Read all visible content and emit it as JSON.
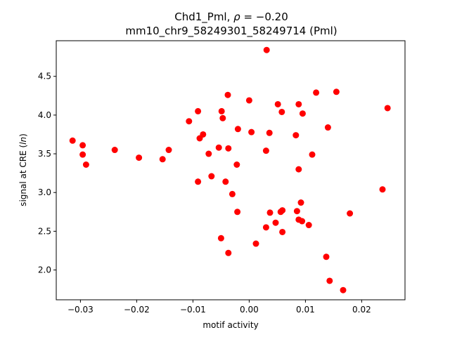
{
  "chart_data": {
    "type": "scatter",
    "title_line1": "Chd1_Pml, ρ = −0.20",
    "title_line2": "mm10_chr9_58249301_58249714 (Pml)",
    "xlabel": "motif activity",
    "ylabel": "signal at CRE (ln)",
    "xlim": [
      -0.0343,
      0.0277
    ],
    "ylim": [
      1.615,
      4.96
    ],
    "xticks": [
      {
        "value": -0.03,
        "label": "−0.03"
      },
      {
        "value": -0.02,
        "label": "−0.02"
      },
      {
        "value": -0.01,
        "label": "−0.01"
      },
      {
        "value": 0.0,
        "label": "0.00"
      },
      {
        "value": 0.01,
        "label": "0.01"
      },
      {
        "value": 0.02,
        "label": "0.02"
      }
    ],
    "yticks": [
      {
        "value": 2.0,
        "label": "2.0"
      },
      {
        "value": 2.5,
        "label": "2.5"
      },
      {
        "value": 3.0,
        "label": "3.0"
      },
      {
        "value": 3.5,
        "label": "3.5"
      },
      {
        "value": 4.0,
        "label": "4.0"
      },
      {
        "value": 4.5,
        "label": "4.5"
      }
    ],
    "grid": false,
    "marker_color": "#ff0000",
    "points": [
      {
        "x": -0.0314,
        "y": 3.67
      },
      {
        "x": -0.0296,
        "y": 3.61
      },
      {
        "x": -0.0296,
        "y": 3.49
      },
      {
        "x": -0.029,
        "y": 3.36
      },
      {
        "x": -0.0239,
        "y": 3.55
      },
      {
        "x": -0.0196,
        "y": 3.45
      },
      {
        "x": -0.0154,
        "y": 3.43
      },
      {
        "x": -0.0143,
        "y": 3.55
      },
      {
        "x": -0.0107,
        "y": 3.92
      },
      {
        "x": -0.0091,
        "y": 4.05
      },
      {
        "x": -0.0088,
        "y": 3.7
      },
      {
        "x": -0.0082,
        "y": 3.75
      },
      {
        "x": -0.0091,
        "y": 3.14
      },
      {
        "x": -0.0072,
        "y": 3.5
      },
      {
        "x": -0.0067,
        "y": 3.21
      },
      {
        "x": -0.0054,
        "y": 3.58
      },
      {
        "x": -0.0049,
        "y": 4.05
      },
      {
        "x": -0.0047,
        "y": 3.96
      },
      {
        "x": -0.0042,
        "y": 3.14
      },
      {
        "x": -0.0038,
        "y": 4.26
      },
      {
        "x": -0.0037,
        "y": 3.57
      },
      {
        "x": -0.003,
        "y": 2.98
      },
      {
        "x": -0.0022,
        "y": 3.36
      },
      {
        "x": -0.0021,
        "y": 2.75
      },
      {
        "x": -0.002,
        "y": 3.82
      },
      {
        "x": -0.005,
        "y": 2.41
      },
      {
        "x": -0.0037,
        "y": 2.22
      },
      {
        "x": 0.0,
        "y": 4.19
      },
      {
        "x": 0.0004,
        "y": 3.78
      },
      {
        "x": 0.0012,
        "y": 2.34
      },
      {
        "x": 0.003,
        "y": 3.54
      },
      {
        "x": 0.0031,
        "y": 4.84
      },
      {
        "x": 0.003,
        "y": 2.55
      },
      {
        "x": 0.0036,
        "y": 3.77
      },
      {
        "x": 0.0037,
        "y": 2.74
      },
      {
        "x": 0.0047,
        "y": 2.61
      },
      {
        "x": 0.0051,
        "y": 4.14
      },
      {
        "x": 0.0056,
        "y": 2.75
      },
      {
        "x": 0.0058,
        "y": 4.04
      },
      {
        "x": 0.0059,
        "y": 2.77
      },
      {
        "x": 0.0059,
        "y": 2.49
      },
      {
        "x": 0.0083,
        "y": 3.74
      },
      {
        "x": 0.0085,
        "y": 2.76
      },
      {
        "x": 0.0088,
        "y": 4.14
      },
      {
        "x": 0.0088,
        "y": 3.3
      },
      {
        "x": 0.0088,
        "y": 2.65
      },
      {
        "x": 0.0092,
        "y": 2.87
      },
      {
        "x": 0.0094,
        "y": 2.63
      },
      {
        "x": 0.0095,
        "y": 4.02
      },
      {
        "x": 0.0106,
        "y": 2.58
      },
      {
        "x": 0.0112,
        "y": 3.49
      },
      {
        "x": 0.0119,
        "y": 4.29
      },
      {
        "x": 0.0137,
        "y": 2.17
      },
      {
        "x": 0.014,
        "y": 3.84
      },
      {
        "x": 0.0143,
        "y": 1.86
      },
      {
        "x": 0.0155,
        "y": 4.3
      },
      {
        "x": 0.0167,
        "y": 1.74
      },
      {
        "x": 0.0179,
        "y": 2.73
      },
      {
        "x": 0.0237,
        "y": 3.04
      },
      {
        "x": 0.0246,
        "y": 4.09
      }
    ]
  }
}
